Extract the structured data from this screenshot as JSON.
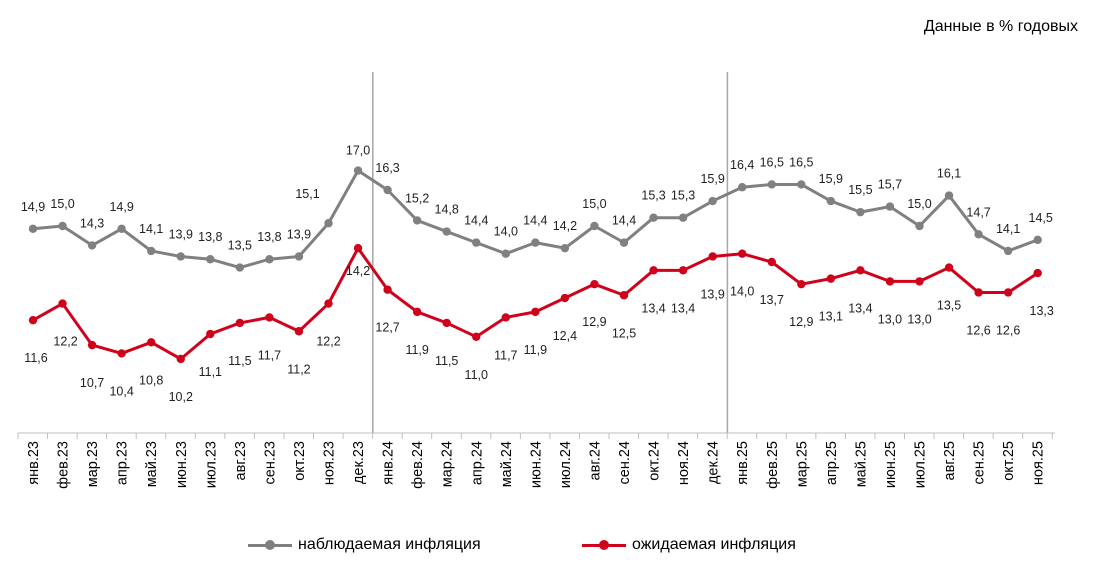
{
  "units_note": "Данные в % годовых",
  "chart_data": {
    "type": "line",
    "categories": [
      "янв.23",
      "фев.23",
      "мар.23",
      "апр.23",
      "май.23",
      "июн.23",
      "июл.23",
      "авг.23",
      "сен.23",
      "окт.23",
      "ноя.23",
      "дек.23",
      "янв.24",
      "фев.24",
      "мар.24",
      "апр.24",
      "май.24",
      "июн.24",
      "июл.24",
      "авг.24",
      "сен.24",
      "окт.24",
      "ноя.24",
      "дек.24",
      "янв.25",
      "фев.25",
      "мар.25",
      "апр.25",
      "май.25",
      "июн.25",
      "июл.25",
      "авг.25",
      "сен.25",
      "окт.25",
      "ноя.25"
    ],
    "series": [
      {
        "name": "наблюдаемая инфляция",
        "color": "#808080",
        "values": [
          14.9,
          15.0,
          14.3,
          14.9,
          14.1,
          13.9,
          13.8,
          13.5,
          13.8,
          13.9,
          15.1,
          17.0,
          16.3,
          15.2,
          14.8,
          14.4,
          14.0,
          14.4,
          14.2,
          15.0,
          14.4,
          15.3,
          15.3,
          15.9,
          16.4,
          16.5,
          16.5,
          15.9,
          15.5,
          15.7,
          15.0,
          16.1,
          14.7,
          14.1,
          14.5
        ],
        "labels": [
          "14,9",
          "15,0",
          "14,3",
          "14,9",
          "14,1",
          "13,9",
          "13,8",
          "13,5",
          "13,8",
          "13,9",
          "15,1",
          "17,0",
          "16,3",
          "15,2",
          "14,8",
          "14,4",
          "14,0",
          "14,4",
          "14,2",
          "15,0",
          "14,4",
          "15,3",
          "15,3",
          "15,9",
          "16,4",
          "16,5",
          "16,5",
          "15,9",
          "15,5",
          "15,7",
          "15,0",
          "16,1",
          "14,7",
          "14,1",
          "14,5"
        ]
      },
      {
        "name": "ожидаемая инфляция",
        "color": "#d0021b",
        "values": [
          11.6,
          12.2,
          10.7,
          10.4,
          10.8,
          10.2,
          11.1,
          11.5,
          11.7,
          11.2,
          12.2,
          14.2,
          12.7,
          11.9,
          11.5,
          11.0,
          11.7,
          11.9,
          12.4,
          12.9,
          12.5,
          13.4,
          13.4,
          13.9,
          14.0,
          13.7,
          12.9,
          13.1,
          13.4,
          13.0,
          13.0,
          13.5,
          12.6,
          12.6,
          13.3
        ],
        "labels": [
          "11,6",
          "12,2",
          "10,7",
          "10,4",
          "10,8",
          "10,2",
          "11,1",
          "11,5",
          "11,7",
          "11,2",
          "12,2",
          "14,2",
          "12,7",
          "11,9",
          "11,5",
          "11,0",
          "11,7",
          "11,9",
          "12,4",
          "12,9",
          "12,5",
          "13,4",
          "13,4",
          "13,9",
          "14,0",
          "13,7",
          "12,9",
          "13,1",
          "13,4",
          "13,0",
          "13,0",
          "13,5",
          "12,6",
          "12,6",
          "13,3"
        ]
      }
    ],
    "year_separators_after": [
      "дек.23",
      "дек.24"
    ],
    "grid": false,
    "legend_position": "bottom"
  }
}
